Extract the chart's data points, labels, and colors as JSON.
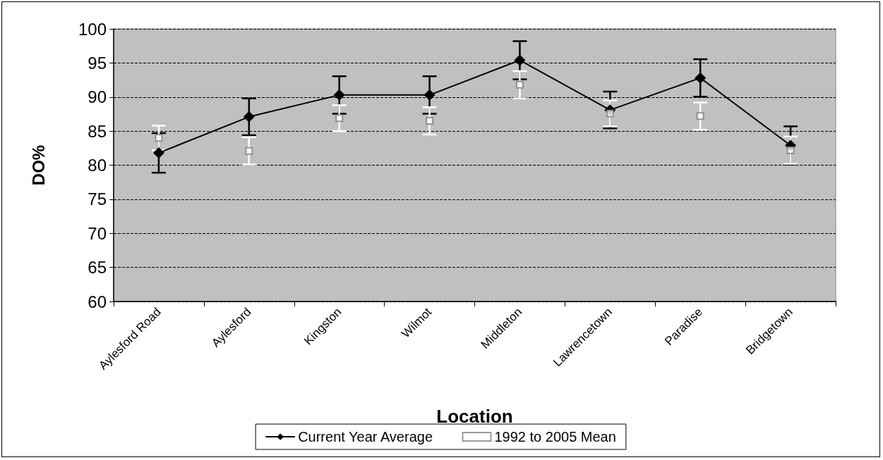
{
  "chart_data": {
    "type": "line",
    "xlabel": "Location",
    "ylabel": "DO%",
    "categories": [
      "Aylesford Road",
      "Aylesford",
      "Kingston",
      "Wilmot",
      "Middleton",
      "Lawrencetown",
      "Paradise",
      "Bridgetown"
    ],
    "series": [
      {
        "name": "Current Year Average",
        "color": "#000000",
        "marker": "diamond",
        "line_style": "solid",
        "values": [
          81.8,
          87.1,
          90.3,
          90.3,
          95.4,
          88.1,
          92.8,
          82.9
        ],
        "errors": [
          2.9,
          2.7,
          2.75,
          2.75,
          2.8,
          2.7,
          2.75,
          2.8
        ]
      },
      {
        "name": "1992 to 2005 Mean",
        "type": "scatter",
        "color": "#808080",
        "marker": "square",
        "values": [
          84.0,
          82.1,
          86.9,
          86.5,
          91.8,
          87.6,
          87.2,
          82.2
        ],
        "errors": [
          1.8,
          2.0,
          1.9,
          2.0,
          2.0,
          1.9,
          2.0,
          2.0
        ]
      }
    ],
    "ylim": [
      60,
      100
    ],
    "yticks": [
      60,
      65,
      70,
      75,
      80,
      85,
      90,
      95,
      100
    ],
    "grid": "y",
    "legend": "bottom"
  }
}
